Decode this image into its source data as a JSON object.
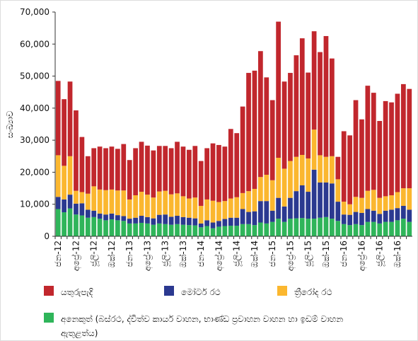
{
  "chart_data": {
    "type": "stacked_bar",
    "ylabel": "සංඛ්‍යාව",
    "categories": [
      "ජන-12",
      null,
      null,
      "අප්‍රේ-12",
      null,
      null,
      "ජූලි-12",
      null,
      null,
      "ඔක්-12",
      null,
      null,
      "ජන-13",
      null,
      null,
      "අප්‍රේ-13",
      null,
      null,
      "ජූලි-13",
      null,
      null,
      "ඔක්-13",
      null,
      null,
      "ජන-14",
      null,
      null,
      "අප්‍රේ-14",
      null,
      null,
      "ජූලි-14",
      null,
      null,
      "ඔක්-14",
      null,
      null,
      "ජන-15",
      null,
      null,
      "අප්‍රේ-15",
      null,
      null,
      "ජූලි-15",
      null,
      null,
      "ඔක්-15",
      null,
      null,
      "ජන-16",
      null,
      null,
      "අප්‍රේ-16",
      null,
      null,
      "ජූලි-16",
      null,
      null,
      "ඔක්-16",
      null,
      null
    ],
    "series": [
      {
        "name": "අනෙකුත් (බස්රථ, ද්විත්ව කාර්ය වාහන, භාණ්ඩ ප්‍රවාහන වාහන හා ඉඩම් වාහන ඇතුළත්ය)",
        "color": "#2fb55a",
        "values": [
          8500,
          7500,
          8700,
          6800,
          6500,
          5800,
          6000,
          5500,
          5000,
          5300,
          5000,
          4800,
          4000,
          4000,
          4200,
          4000,
          3600,
          4000,
          3800,
          3600,
          3800,
          3600,
          3500,
          3400,
          2800,
          3200,
          2500,
          3000,
          3200,
          3300,
          3300,
          3800,
          3800,
          3500,
          4300,
          4000,
          4500,
          5500,
          4500,
          5500,
          5600,
          5700,
          5500,
          5500,
          5800,
          6000,
          5500,
          4800,
          3800,
          3500,
          3800,
          3500,
          4500,
          4500,
          4000,
          4500,
          4500,
          5000,
          5500,
          4500
        ]
      },
      {
        "name": "මෝටර් රථ",
        "color": "#2b3990",
        "values": [
          3800,
          4000,
          4300,
          3400,
          3800,
          2500,
          2000,
          1600,
          1800,
          1800,
          1600,
          1500,
          1500,
          1800,
          2200,
          2000,
          2000,
          2700,
          3000,
          2500,
          2600,
          2400,
          2300,
          2200,
          1200,
          1800,
          1800,
          1800,
          2200,
          2500,
          2500,
          4700,
          3800,
          4300,
          6700,
          7000,
          3500,
          6500,
          4800,
          6500,
          8500,
          10200,
          8400,
          15300,
          11000,
          10800,
          11000,
          6000,
          3000,
          3200,
          3800,
          3800,
          4000,
          3500,
          3000,
          3500,
          3800,
          3800,
          4000,
          3800
        ]
      },
      {
        "name": "ත්‍රීරෝද රථ",
        "color": "#fbb72f",
        "values": [
          13000,
          10500,
          12000,
          4000,
          3500,
          5000,
          7600,
          7500,
          7600,
          7500,
          7700,
          8000,
          6000,
          7000,
          7500,
          7000,
          6500,
          7300,
          7400,
          7000,
          7000,
          6500,
          6000,
          6500,
          5500,
          6500,
          6800,
          5900,
          5600,
          6000,
          6400,
          5000,
          6500,
          7000,
          7500,
          8200,
          9500,
          12500,
          11800,
          11500,
          10700,
          9500,
          10400,
          12500,
          8500,
          8000,
          8500,
          7000,
          4000,
          3300,
          4700,
          4700,
          5700,
          6500,
          5000,
          4500,
          4500,
          5000,
          5500,
          6700
        ]
      },
      {
        "name": "යතුරුපැදි",
        "color": "#c1272d",
        "values": [
          23200,
          20800,
          23300,
          25100,
          17200,
          11700,
          11900,
          13400,
          13100,
          13400,
          13000,
          14500,
          12300,
          14700,
          15600,
          15300,
          14700,
          14200,
          14000,
          14400,
          16100,
          15500,
          15200,
          16100,
          14000,
          16000,
          17900,
          17800,
          17000,
          21700,
          20000,
          27000,
          36900,
          36900,
          39300,
          30400,
          25000,
          42500,
          27200,
          27500,
          31700,
          36400,
          26800,
          30700,
          32200,
          37700,
          30500,
          7000,
          22000,
          21500,
          30200,
          24500,
          32800,
          30300,
          24000,
          29700,
          29000,
          30700,
          32500,
          31000
        ]
      }
    ],
    "legend_order": [
      3,
      1,
      2,
      0
    ],
    "ylim": [
      0,
      70000
    ],
    "yticks": [
      0,
      {
        "value": 10000,
        "label": "10,000"
      },
      {
        "value": 20000,
        "label": "20,000"
      },
      {
        "value": 30000,
        "label": "30,000"
      },
      {
        "value": 40000,
        "label": "40,000"
      },
      {
        "value": 50000,
        "label": "50,000"
      },
      {
        "value": 60000,
        "label": "60,000"
      },
      {
        "value": 70000,
        "label": "70,000"
      }
    ],
    "grid": false
  }
}
